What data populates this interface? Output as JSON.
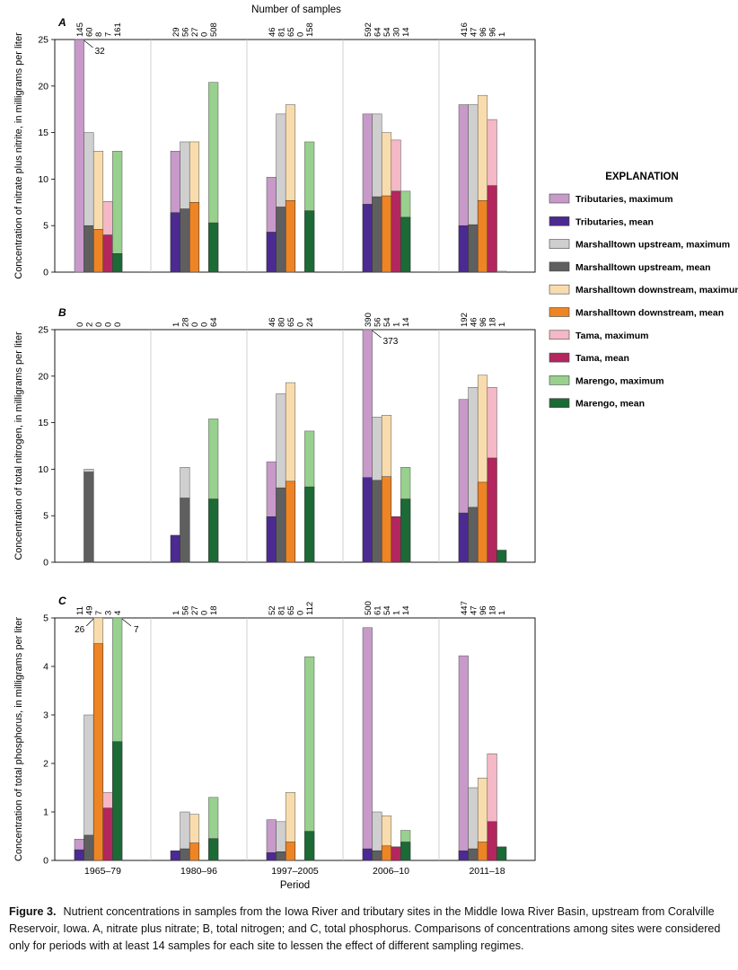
{
  "figure_title": "Number of samples",
  "caption": {
    "label": "Figure 3.",
    "text": "Nutrient concentrations in samples from the Iowa River and tributary sites in the Middle Iowa River Basin, upstream from Coralville Reservoir, Iowa. A, nitrate plus nitrate; B, total nitrogen; and C, total phosphorus. Comparisons of concentrations among sites were considered only for periods with at least 14 samples for each site to lessen the effect of different sampling regimes."
  },
  "explanation": {
    "title": "EXPLANATION",
    "items": [
      {
        "label": "Tributaries, maximum",
        "color": "#c79ac9"
      },
      {
        "label": "Tributaries, mean",
        "color": "#4b2a91"
      },
      {
        "label": "Marshalltown upstream, maximum",
        "color": "#cfcfcf"
      },
      {
        "label": "Marshalltown upstream, mean",
        "color": "#5f5f5f"
      },
      {
        "label": "Marshalltown downstream, maximum",
        "color": "#f9dcae"
      },
      {
        "label": "Marshalltown downstream, mean",
        "color": "#ef8424"
      },
      {
        "label": "Tama, maximum",
        "color": "#f5b8c6"
      },
      {
        "label": "Tama, mean",
        "color": "#b3265e"
      },
      {
        "label": "Marengo, maximum",
        "color": "#98d08e"
      },
      {
        "label": "Marengo, mean",
        "color": "#1c6a36"
      }
    ]
  },
  "chart_data": [
    {
      "type": "bar",
      "panel": "A",
      "ylabel": "Concentration of nitrate plus nitrite, in milligrams per liter",
      "ylim": [
        0,
        25
      ],
      "yticks": [
        "0",
        "5",
        "10",
        "15",
        "20",
        "25"
      ],
      "categories": [
        "1965–79",
        "1980–96",
        "1997–2005",
        "2006–10",
        "2011–18"
      ],
      "sites": [
        "Tributaries",
        "Marshalltown upstream",
        "Marshalltown downstream",
        "Tama",
        "Marengo"
      ],
      "series": [
        {
          "name": "Tributaries",
          "max": [
            25,
            13,
            10.2,
            17,
            18
          ],
          "mean": [
            0,
            6.4,
            4.3,
            7.3,
            5
          ]
        },
        {
          "name": "Marshalltown upstream",
          "max": [
            15,
            14,
            17,
            17,
            18
          ],
          "mean": [
            5,
            6.8,
            7,
            8.1,
            5.1
          ]
        },
        {
          "name": "Marshalltown downstream",
          "max": [
            13,
            14,
            18,
            15,
            19
          ],
          "mean": [
            4.6,
            7.5,
            7.7,
            8.2,
            7.7
          ]
        },
        {
          "name": "Tama",
          "max": [
            7.6,
            0,
            0,
            14.2,
            16.4
          ],
          "mean": [
            4,
            0,
            0,
            8.7,
            9.3
          ]
        },
        {
          "name": "Marengo",
          "max": [
            13,
            20.4,
            14,
            8.7,
            0.1
          ],
          "mean": [
            2,
            5.3,
            6.6,
            5.9,
            0
          ]
        }
      ],
      "sample_counts": [
        [
          "145",
          "60",
          "8",
          "7",
          "161"
        ],
        [
          "29",
          "56",
          "27",
          "0",
          "508"
        ],
        [
          "46",
          "81",
          "65",
          "0",
          "158"
        ],
        [
          "592",
          "64",
          "54",
          "30",
          "14"
        ],
        [
          "416",
          "47",
          "96",
          "96",
          "1"
        ]
      ],
      "annotations": [
        {
          "text": "32",
          "period": 0,
          "site": 0
        }
      ]
    },
    {
      "type": "bar",
      "panel": "B",
      "ylabel": "Concentration of total nitrogen, in milligrams per liter",
      "ylim": [
        0,
        25
      ],
      "yticks": [
        "0",
        "5",
        "10",
        "15",
        "20",
        "25"
      ],
      "categories": [
        "1965–79",
        "1980–96",
        "1997–2005",
        "2006–10",
        "2011–18"
      ],
      "sites": [
        "Tributaries",
        "Marshalltown upstream",
        "Marshalltown downstream",
        "Tama",
        "Marengo"
      ],
      "series": [
        {
          "name": "Tributaries",
          "max": [
            0,
            0,
            10.8,
            25,
            17.5
          ],
          "mean": [
            0,
            2.9,
            4.9,
            9.1,
            5.3
          ]
        },
        {
          "name": "Marshalltown upstream",
          "max": [
            10,
            10.2,
            18.1,
            15.6,
            18.8
          ],
          "mean": [
            9.7,
            6.9,
            8,
            8.8,
            5.9
          ]
        },
        {
          "name": "Marshalltown downstream",
          "max": [
            0,
            0,
            19.3,
            15.8,
            20.1
          ],
          "mean": [
            0,
            0,
            8.7,
            9.2,
            8.6
          ]
        },
        {
          "name": "Tama",
          "max": [
            0,
            0,
            0,
            0,
            18.8
          ],
          "mean": [
            0,
            0,
            0,
            4.9,
            11.2
          ]
        },
        {
          "name": "Marengo",
          "max": [
            0,
            15.4,
            14.1,
            10.2,
            0
          ],
          "mean": [
            0,
            6.8,
            8.1,
            6.8,
            1.3
          ]
        }
      ],
      "sample_counts": [
        [
          "0",
          "2",
          "0",
          "0",
          "0"
        ],
        [
          "1",
          "28",
          "0",
          "0",
          "64"
        ],
        [
          "46",
          "80",
          "65",
          "0",
          "24"
        ],
        [
          "390",
          "56",
          "54",
          "1",
          "14"
        ],
        [
          "192",
          "46",
          "96",
          "18",
          "1"
        ]
      ],
      "annotations": [
        {
          "text": "373",
          "period": 3,
          "site": 0
        }
      ]
    },
    {
      "type": "bar",
      "panel": "C",
      "ylabel": "Concentration of total phosphorus, in milligrams per liter",
      "xlabel": "Period",
      "ylim": [
        0,
        5
      ],
      "yticks": [
        "0",
        "1",
        "2",
        "3",
        "4",
        "5"
      ],
      "categories": [
        "1965–79",
        "1980–96",
        "1997–2005",
        "2006–10",
        "2011–18"
      ],
      "sites": [
        "Tributaries",
        "Marshalltown upstream",
        "Marshalltown downstream",
        "Tama",
        "Marengo"
      ],
      "series": [
        {
          "name": "Tributaries",
          "max": [
            0.44,
            0,
            0.84,
            4.8,
            4.22
          ],
          "mean": [
            0.22,
            0.2,
            0.16,
            0.24,
            0.2
          ]
        },
        {
          "name": "Marshalltown upstream",
          "max": [
            3,
            1,
            0.8,
            1,
            1.5
          ],
          "mean": [
            0.52,
            0.24,
            0.18,
            0.2,
            0.24
          ]
        },
        {
          "name": "Marshalltown downstream",
          "max": [
            5,
            0.95,
            1.4,
            0.92,
            1.7
          ],
          "mean": [
            4.47,
            0.36,
            0.38,
            0.3,
            0.38
          ]
        },
        {
          "name": "Tama",
          "max": [
            1.4,
            0,
            0,
            0,
            2.2
          ],
          "mean": [
            1.08,
            0,
            0,
            0.28,
            0.8
          ]
        },
        {
          "name": "Marengo",
          "max": [
            5,
            1.3,
            4.2,
            0.62,
            0
          ],
          "mean": [
            2.45,
            0.45,
            0.6,
            0.38,
            0.28
          ]
        }
      ],
      "sample_counts": [
        [
          "11",
          "49",
          "7",
          "3",
          "4"
        ],
        [
          "1",
          "56",
          "27",
          "0",
          "18"
        ],
        [
          "52",
          "81",
          "65",
          "0",
          "112"
        ],
        [
          "500",
          "61",
          "54",
          "1",
          "14"
        ],
        [
          "447",
          "47",
          "96",
          "18",
          "1"
        ]
      ],
      "annotations": [
        {
          "text": "26",
          "period": 0,
          "site": 2
        },
        {
          "text": "7",
          "period": 0,
          "site": 4
        }
      ]
    }
  ]
}
